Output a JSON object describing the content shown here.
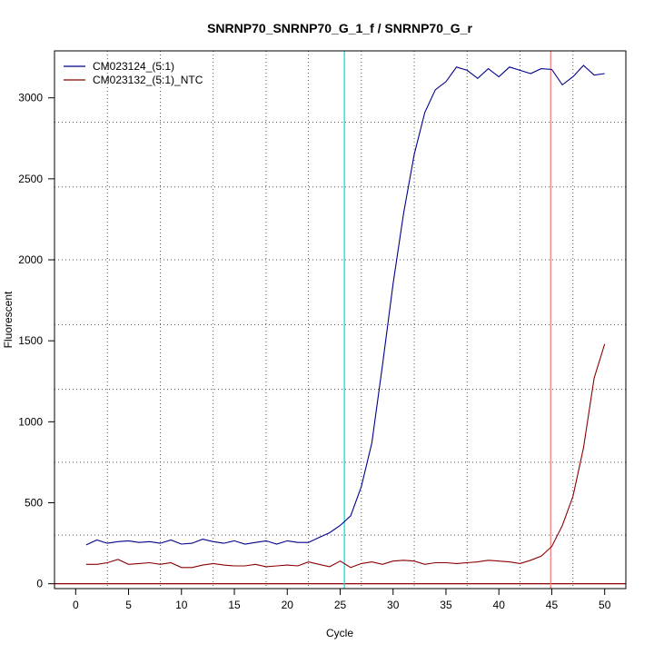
{
  "chart_data": {
    "type": "line",
    "title": "SNRNP70_SNRNP70_G_1_f / SNRNP70_G_r",
    "xlabel": "Cycle",
    "ylabel": "Fluorescent",
    "xlim": [
      -2,
      52
    ],
    "ylim": [
      -30,
      3290
    ],
    "xticks": [
      0,
      5,
      10,
      15,
      20,
      25,
      30,
      35,
      40,
      45,
      50
    ],
    "yticks": [
      0,
      500,
      1000,
      1500,
      2000,
      2500,
      3000
    ],
    "xticks_labels": [
      "0",
      "5",
      "10",
      "15",
      "20",
      "25",
      "30",
      "35",
      "40",
      "45",
      "50"
    ],
    "yticks_labels": [
      "0",
      "500",
      "1000",
      "1500",
      "2000",
      "2500",
      "3000"
    ],
    "x_grid_dotted": [
      3,
      8,
      13,
      18,
      22,
      27,
      32,
      37,
      42,
      47
    ],
    "y_grid_dotted": [
      300,
      750,
      1200,
      1600,
      2000,
      2450,
      2850
    ],
    "grid": true,
    "legend_position": "top-left",
    "threshold_line": {
      "value": 0,
      "color": "#8b0000"
    },
    "cycle_markers": [
      {
        "x": 25.4,
        "color": "#00e5ee"
      },
      {
        "x": 44.9,
        "color": "#f08080"
      }
    ],
    "series": [
      {
        "name": "CM023124_(5:1)",
        "color": "#00008b",
        "x": [
          1,
          2,
          3,
          4,
          5,
          6,
          7,
          8,
          9,
          10,
          11,
          12,
          13,
          14,
          15,
          16,
          17,
          18,
          19,
          20,
          21,
          22,
          23,
          24,
          25,
          26,
          27,
          28,
          29,
          30,
          31,
          32,
          33,
          34,
          35,
          36,
          37,
          38,
          39,
          40,
          41,
          42,
          43,
          44,
          45,
          46,
          47,
          48,
          49,
          50
        ],
        "values": [
          240,
          270,
          250,
          260,
          265,
          255,
          260,
          250,
          270,
          245,
          250,
          275,
          260,
          250,
          265,
          245,
          255,
          265,
          245,
          265,
          255,
          255,
          285,
          315,
          360,
          420,
          600,
          870,
          1350,
          1850,
          2290,
          2650,
          2910,
          3050,
          3100,
          3190,
          3170,
          3120,
          3180,
          3130,
          3190,
          3170,
          3150,
          3180,
          3175,
          3080,
          3130,
          3200,
          3140,
          3150
        ]
      },
      {
        "name": "CM023132_(5:1)_NTC",
        "color": "#8b0000",
        "x": [
          1,
          2,
          3,
          4,
          5,
          6,
          7,
          8,
          9,
          10,
          11,
          12,
          13,
          14,
          15,
          16,
          17,
          18,
          19,
          20,
          21,
          22,
          23,
          24,
          25,
          26,
          27,
          28,
          29,
          30,
          31,
          32,
          33,
          34,
          35,
          36,
          37,
          38,
          39,
          40,
          41,
          42,
          43,
          44,
          45,
          46,
          47,
          48,
          49,
          50
        ],
        "values": [
          120,
          120,
          130,
          150,
          120,
          125,
          130,
          120,
          130,
          100,
          100,
          115,
          125,
          115,
          110,
          110,
          120,
          105,
          110,
          115,
          110,
          135,
          120,
          105,
          140,
          100,
          125,
          135,
          120,
          140,
          145,
          140,
          120,
          130,
          130,
          125,
          130,
          135,
          145,
          140,
          135,
          125,
          145,
          170,
          230,
          360,
          540,
          840,
          1270,
          1480
        ]
      }
    ]
  }
}
